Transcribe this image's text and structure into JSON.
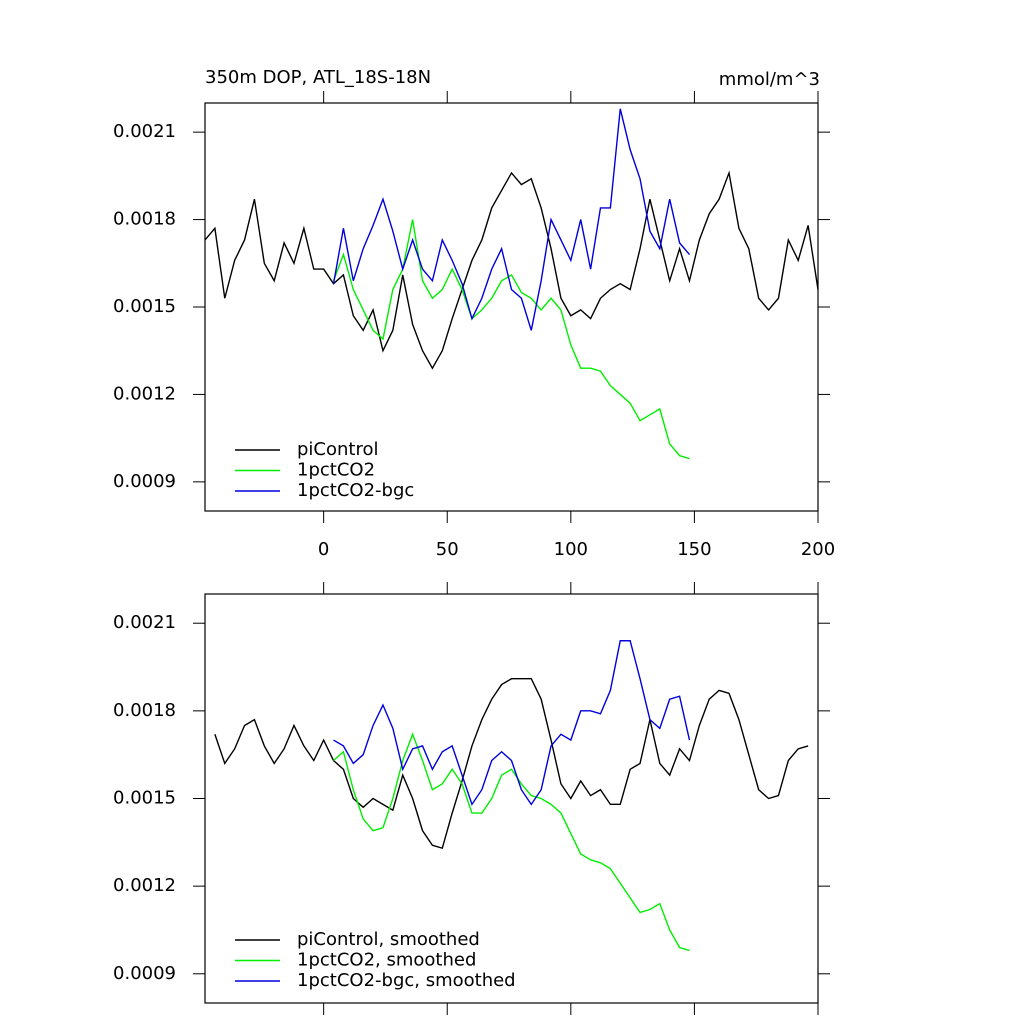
{
  "chart_data": [
    {
      "type": "line",
      "title": "350m DOP, ATL_18S-18N",
      "subtitle": "mmol/m^3",
      "x": [
        -48,
        -44,
        -40,
        -36,
        -32,
        -28,
        -24,
        -20,
        -16,
        -12,
        -8,
        -4,
        0,
        4,
        8,
        12,
        16,
        20,
        24,
        28,
        32,
        36,
        40,
        44,
        48,
        52,
        56,
        60,
        64,
        68,
        72,
        76,
        80,
        84,
        88,
        92,
        96,
        100,
        104,
        108,
        112,
        116,
        120,
        124,
        128,
        132,
        136,
        140,
        144,
        148,
        152,
        156,
        160,
        164,
        168,
        172,
        176,
        180,
        184,
        188,
        192,
        196,
        200
      ],
      "xlim": [
        -48,
        200
      ],
      "xticks": [
        0,
        50,
        100,
        150,
        200
      ],
      "ylim": [
        0.0008,
        0.0022
      ],
      "yticks": [
        0.0009,
        0.0012,
        0.0015,
        0.0018,
        0.0021
      ],
      "legend": "lower left",
      "series": [
        {
          "name": "piControl",
          "color": "#000000",
          "values": [
            0.00173,
            0.00177,
            0.00153,
            0.00166,
            0.00173,
            0.00187,
            0.00165,
            0.00159,
            0.00172,
            0.00165,
            0.00177,
            0.00163,
            0.00163,
            0.00158,
            0.00161,
            0.00147,
            0.00142,
            0.00149,
            0.00135,
            0.00142,
            0.00161,
            0.00144,
            0.00135,
            0.00129,
            0.00135,
            0.00146,
            0.00156,
            0.00166,
            0.00173,
            0.00184,
            0.0019,
            0.00196,
            0.00192,
            0.00194,
            0.00184,
            0.0017,
            0.00153,
            0.00147,
            0.00149,
            0.00146,
            0.00153,
            0.00156,
            0.00158,
            0.00156,
            0.0017,
            0.00187,
            0.00173,
            0.00159,
            0.0017,
            0.00159,
            0.00173,
            0.00182,
            0.00187,
            0.00196,
            0.00177,
            0.0017,
            0.00153,
            0.00149,
            0.00153,
            0.00173,
            0.00166,
            0.00178,
            0.00156
          ]
        },
        {
          "name": "1pctCO2",
          "color": "#00ee00",
          "values": [
            null,
            null,
            null,
            null,
            null,
            null,
            null,
            null,
            null,
            null,
            null,
            null,
            null,
            0.00159,
            0.00168,
            0.00156,
            0.00149,
            0.00142,
            0.00139,
            0.00156,
            0.00163,
            0.0018,
            0.00159,
            0.00153,
            0.00156,
            0.00163,
            0.00156,
            0.00146,
            0.00149,
            0.00153,
            0.00159,
            0.00161,
            0.00155,
            0.00153,
            0.00149,
            0.00153,
            0.00149,
            0.00137,
            0.00129,
            0.00129,
            0.00128,
            0.00123,
            0.0012,
            0.00117,
            0.00111,
            0.00113,
            0.00115,
            0.00103,
            0.00099,
            0.00098,
            null,
            null,
            null,
            null,
            null,
            null,
            null,
            null,
            null,
            null,
            null,
            null,
            null
          ]
        },
        {
          "name": "1pctCO2-bgc",
          "color": "#0000dd",
          "values": [
            null,
            null,
            null,
            null,
            null,
            null,
            null,
            null,
            null,
            null,
            null,
            null,
            null,
            0.00158,
            0.00177,
            0.00159,
            0.0017,
            0.00178,
            0.00187,
            0.00176,
            0.00163,
            0.00173,
            0.00163,
            0.00159,
            0.00173,
            0.00166,
            0.00158,
            0.00146,
            0.00153,
            0.00163,
            0.0017,
            0.00156,
            0.00153,
            0.00142,
            0.00159,
            0.0018,
            0.00173,
            0.00166,
            0.0018,
            0.00163,
            0.00184,
            0.00184,
            0.00218,
            0.00204,
            0.00194,
            0.00176,
            0.0017,
            0.00187,
            0.00172,
            0.00168,
            null,
            null,
            null,
            null,
            null,
            null,
            null,
            null,
            null,
            null,
            null,
            null,
            null
          ]
        }
      ]
    },
    {
      "type": "line",
      "x": [
        -48,
        -44,
        -40,
        -36,
        -32,
        -28,
        -24,
        -20,
        -16,
        -12,
        -8,
        -4,
        0,
        4,
        8,
        12,
        16,
        20,
        24,
        28,
        32,
        36,
        40,
        44,
        48,
        52,
        56,
        60,
        64,
        68,
        72,
        76,
        80,
        84,
        88,
        92,
        96,
        100,
        104,
        108,
        112,
        116,
        120,
        124,
        128,
        132,
        136,
        140,
        144,
        148,
        152,
        156,
        160,
        164,
        168,
        172,
        176,
        180,
        184,
        188,
        192,
        196,
        200
      ],
      "xlim": [
        -48,
        200
      ],
      "ylim": [
        0.0008,
        0.0022
      ],
      "yticks": [
        0.0009,
        0.0012,
        0.0015,
        0.0018,
        0.0021
      ],
      "legend": "lower left",
      "series": [
        {
          "name": "piControl, smoothed",
          "color": "#000000",
          "values": [
            null,
            0.00172,
            0.00162,
            0.00167,
            0.00175,
            0.00177,
            0.00168,
            0.00162,
            0.00167,
            0.00175,
            0.00168,
            0.00163,
            0.0017,
            0.00163,
            0.0016,
            0.0015,
            0.00147,
            0.0015,
            0.00148,
            0.00146,
            0.00158,
            0.0015,
            0.00139,
            0.00134,
            0.00133,
            0.00145,
            0.00156,
            0.00168,
            0.00177,
            0.00184,
            0.00189,
            0.00191,
            0.00191,
            0.00191,
            0.00184,
            0.0017,
            0.00155,
            0.0015,
            0.00156,
            0.00151,
            0.00153,
            0.00148,
            0.00148,
            0.0016,
            0.00162,
            0.00177,
            0.00162,
            0.00158,
            0.00167,
            0.00163,
            0.00175,
            0.00184,
            0.00187,
            0.00186,
            0.00177,
            0.00165,
            0.00153,
            0.0015,
            0.00151,
            0.00163,
            0.00167,
            0.00168,
            null
          ]
        },
        {
          "name": "1pctCO2, smoothed",
          "color": "#00ee00",
          "values": [
            null,
            null,
            null,
            null,
            null,
            null,
            null,
            null,
            null,
            null,
            null,
            null,
            null,
            0.00163,
            0.00166,
            0.00153,
            0.00143,
            0.00139,
            0.0014,
            0.0015,
            0.00163,
            0.00172,
            0.00163,
            0.00153,
            0.00155,
            0.0016,
            0.00155,
            0.00145,
            0.00145,
            0.0015,
            0.00158,
            0.0016,
            0.00155,
            0.00151,
            0.0015,
            0.00148,
            0.00145,
            0.00138,
            0.00131,
            0.00129,
            0.00128,
            0.00126,
            0.00121,
            0.00116,
            0.00111,
            0.00112,
            0.00114,
            0.00105,
            0.00099,
            0.00098,
            null,
            null,
            null,
            null,
            null,
            null,
            null,
            null,
            null,
            null,
            null,
            null,
            null
          ]
        },
        {
          "name": "1pctCO2-bgc, smoothed",
          "color": "#0000dd",
          "values": [
            null,
            null,
            null,
            null,
            null,
            null,
            null,
            null,
            null,
            null,
            null,
            null,
            null,
            0.0017,
            0.00168,
            0.00162,
            0.00165,
            0.00175,
            0.00182,
            0.00174,
            0.0016,
            0.00167,
            0.00168,
            0.0016,
            0.00166,
            0.00168,
            0.00158,
            0.00148,
            0.00153,
            0.00163,
            0.00166,
            0.00163,
            0.00153,
            0.00148,
            0.00153,
            0.00168,
            0.00172,
            0.0017,
            0.0018,
            0.0018,
            0.00179,
            0.00187,
            0.00204,
            0.00204,
            0.00191,
            0.00177,
            0.00174,
            0.00184,
            0.00185,
            0.0017,
            null,
            null,
            null,
            null,
            null,
            null,
            null,
            null,
            null,
            null,
            null,
            null,
            null
          ]
        }
      ]
    }
  ]
}
